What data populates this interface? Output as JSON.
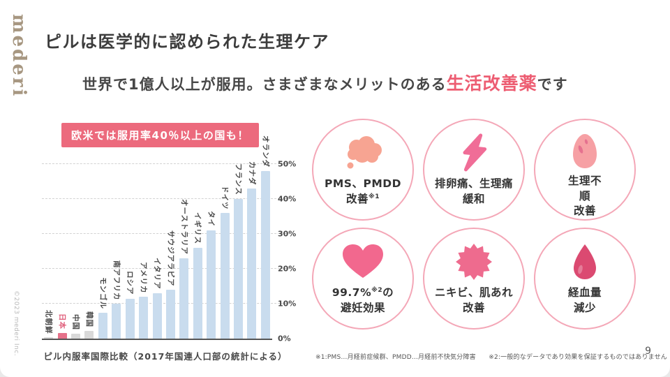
{
  "logo": "mederi",
  "copyright": "©2023 mederi Inc.",
  "page_number": "9",
  "header": {
    "title": "ピルは医学的に認められた生理ケア",
    "subtitle_pre": "世界で1億人以上が服用。さまざまなメリットのある",
    "subtitle_highlight": "生活改善薬",
    "subtitle_post": "です"
  },
  "badge": {
    "label": "欧米では服用率40％以上の国も！"
  },
  "chart_data": {
    "type": "bar",
    "title": "ピル内服率国際比較（2017年国連人口部の統計による）",
    "categories": [
      "北朝鮮",
      "日本",
      "中国",
      "韓国",
      "モンゴル",
      "南アフリカ",
      "ロシア",
      "アメリカ",
      "イタリア",
      "サウジアラビア",
      "オーストラリア",
      "イギリス",
      "タイ",
      "ドイツ",
      "フランス",
      "カナダ",
      "オランダ"
    ],
    "values": [
      0.4,
      1.6,
      1.4,
      2.3,
      7.5,
      10,
      11.5,
      12,
      13,
      14,
      23,
      26,
      31,
      36,
      40,
      43,
      48
    ],
    "bar_colors": [
      "gray",
      "pink",
      "gray",
      "gray",
      "blue",
      "blue",
      "blue",
      "blue",
      "blue",
      "blue",
      "blue",
      "blue",
      "blue",
      "blue",
      "blue",
      "blue",
      "blue"
    ],
    "highlight_category": "日本",
    "xlabel": "",
    "ylabel": "",
    "ylim": [
      0,
      50
    ],
    "yticks": [
      0,
      10,
      20,
      30,
      40,
      50
    ],
    "ytick_labels": [
      "0%",
      "10%",
      "20%",
      "30%",
      "40%",
      "50%"
    ],
    "ytick_side": "right",
    "grid": "dashed"
  },
  "benefits": {
    "items": [
      {
        "icon": "thought-cloud-icon",
        "lines": [
          [
            {
              "t": "PMS、PMDD"
            }
          ],
          [
            {
              "t": "改善"
            },
            {
              "s": "※1"
            }
          ]
        ]
      },
      {
        "icon": "lightning-bolt-icon",
        "lines": [
          [
            {
              "t": "排卵痛、生理痛"
            }
          ],
          [
            {
              "t": "緩和"
            }
          ]
        ]
      },
      {
        "icon": "egg-icon",
        "lines": [
          [
            {
              "t": "生理不"
            }
          ],
          [
            {
              "t": "順"
            }
          ],
          [
            {
              "t": "改善"
            }
          ]
        ]
      },
      {
        "icon": "heart-icon",
        "lines": [
          [
            {
              "t": "99.7%"
            },
            {
              "s": "※2"
            },
            {
              "t": "の"
            }
          ],
          [
            {
              "t": "避妊効果"
            }
          ]
        ]
      },
      {
        "icon": "starburst-icon",
        "lines": [
          [
            {
              "t": "ニキビ、肌あれ"
            }
          ],
          [
            {
              "t": "改善"
            }
          ]
        ]
      },
      {
        "icon": "blood-drop-icon",
        "lines": [
          [
            {
              "t": "経血量"
            }
          ],
          [
            {
              "t": "減少"
            }
          ]
        ]
      }
    ]
  },
  "footnote": "※1:PMS…月経前症候群、PMDD…月経前不快気分障害　　※2:一般的なデータであり効果を保証するものではありません",
  "colors": {
    "accent_pink_text": "#ed5d72",
    "badge_bg": "#ec6a7d",
    "circle_border": "#f4a7b7",
    "bar_blue": "#c9dcee",
    "bar_pink": "#e5718a",
    "bar_gray": "#d9d9d9",
    "icon_cloud": "#f7a492",
    "icon_lightning": "#f06d97",
    "icon_egg": "#f6a0a4",
    "icon_heart": "#f2688e",
    "icon_starburst": "#ee6b8e",
    "icon_drop": "#db4a71",
    "logo_brown": "#a79781"
  }
}
